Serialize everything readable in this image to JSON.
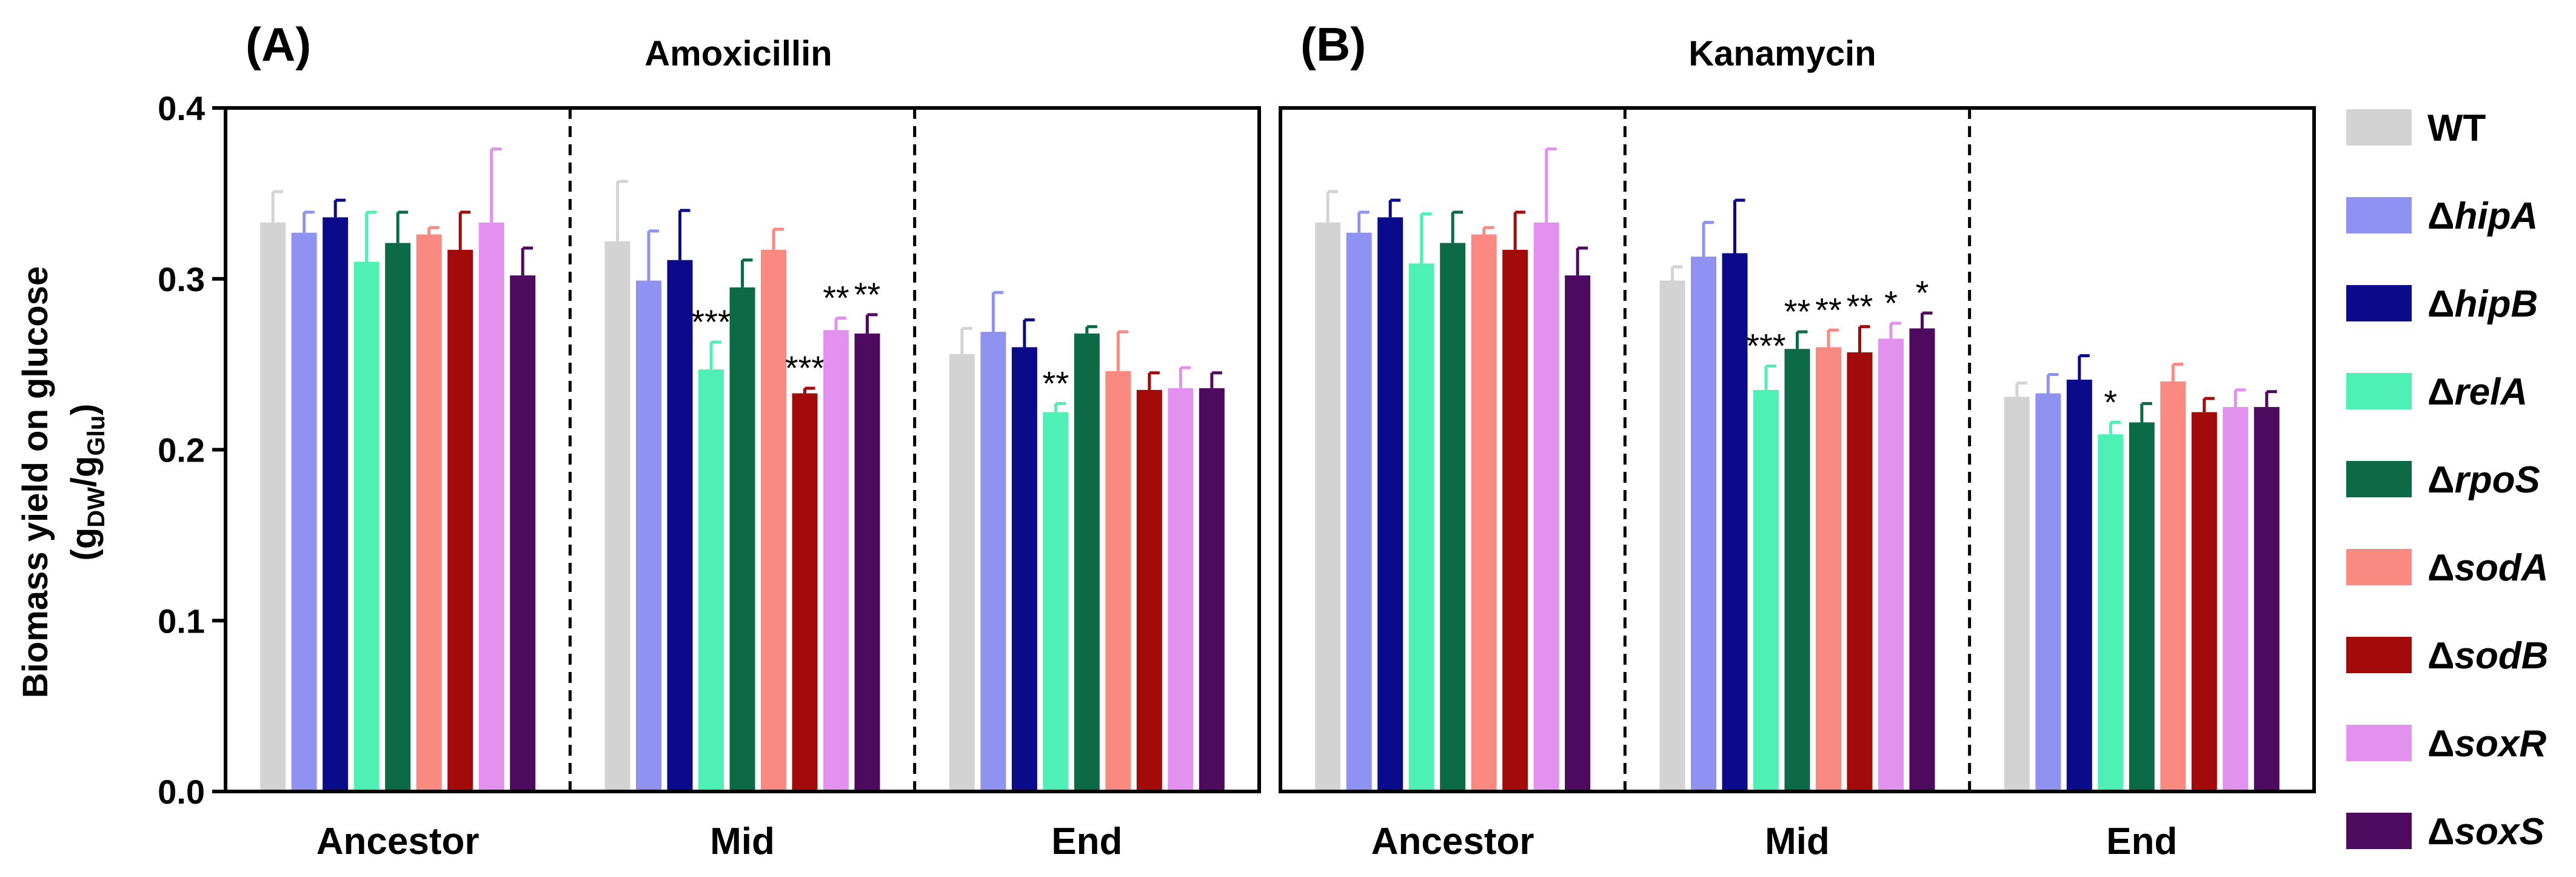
{
  "figure": {
    "ylabel_line1": "Biomass yield on glucose",
    "ylabel_line2_main1": "(g",
    "ylabel_line2_sub1": "DW",
    "ylabel_line2_main2": "/g",
    "ylabel_line2_sub2": "Glu",
    "ylabel_line2_main3": ")",
    "yticks": [
      "0.0",
      "0.1",
      "0.2",
      "0.3",
      "0.4"
    ]
  },
  "legend": [
    {
      "prefix": "",
      "name": "WT",
      "color": "#d3d3d3"
    },
    {
      "prefix": "Δ",
      "name": "hipA",
      "color": "#9092f2"
    },
    {
      "prefix": "Δ",
      "name": "hipB",
      "color": "#0b0a8a"
    },
    {
      "prefix": "Δ",
      "name": "relA",
      "color": "#4ff0b6"
    },
    {
      "prefix": "Δ",
      "name": "rpoS",
      "color": "#0c6b46"
    },
    {
      "prefix": "Δ",
      "name": "sodA",
      "color": "#f98981"
    },
    {
      "prefix": "Δ",
      "name": "sodB",
      "color": "#a30b0b"
    },
    {
      "prefix": "Δ",
      "name": "soxR",
      "color": "#e291ee"
    },
    {
      "prefix": "Δ",
      "name": "soxS",
      "color": "#4d0a5e"
    }
  ],
  "chart_data": [
    {
      "type": "bar",
      "panel": "(A)",
      "title": "Amoxicillin",
      "ylim": [
        0,
        0.4
      ],
      "categories": [
        "Ancestor",
        "Mid",
        "End"
      ],
      "series": [
        {
          "name": "WT",
          "values": [
            0.333,
            0.322,
            0.256
          ],
          "errors": [
            0.018,
            0.035,
            0.015
          ],
          "sig": [
            "",
            "",
            ""
          ]
        },
        {
          "name": "ΔhipA",
          "values": [
            0.327,
            0.299,
            0.269
          ],
          "errors": [
            0.012,
            0.029,
            0.023
          ],
          "sig": [
            "",
            "",
            ""
          ]
        },
        {
          "name": "ΔhipB",
          "values": [
            0.336,
            0.311,
            0.26
          ],
          "errors": [
            0.01,
            0.029,
            0.016
          ],
          "sig": [
            "",
            "",
            ""
          ]
        },
        {
          "name": "ΔrelA",
          "values": [
            0.31,
            0.247,
            0.222
          ],
          "errors": [
            0.029,
            0.016,
            0.005
          ],
          "sig": [
            "",
            "***",
            "**"
          ]
        },
        {
          "name": "ΔrpoS",
          "values": [
            0.321,
            0.295,
            0.268
          ],
          "errors": [
            0.018,
            0.016,
            0.004
          ],
          "sig": [
            "",
            "",
            ""
          ]
        },
        {
          "name": "ΔsodA",
          "values": [
            0.326,
            0.317,
            0.246
          ],
          "errors": [
            0.004,
            0.012,
            0.023
          ],
          "sig": [
            "",
            "",
            ""
          ]
        },
        {
          "name": "ΔsodB",
          "values": [
            0.317,
            0.233,
            0.235
          ],
          "errors": [
            0.022,
            0.003,
            0.01
          ],
          "sig": [
            "",
            "***",
            ""
          ]
        },
        {
          "name": "ΔsoxR",
          "values": [
            0.333,
            0.27,
            0.236
          ],
          "errors": [
            0.043,
            0.007,
            0.012
          ],
          "sig": [
            "",
            "**",
            ""
          ]
        },
        {
          "name": "ΔsoxS",
          "values": [
            0.302,
            0.268,
            0.236
          ],
          "errors": [
            0.016,
            0.011,
            0.009
          ],
          "sig": [
            "",
            "**",
            ""
          ]
        }
      ]
    },
    {
      "type": "bar",
      "panel": "(B)",
      "title": "Kanamycin",
      "ylim": [
        0,
        0.4
      ],
      "categories": [
        "Ancestor",
        "Mid",
        "End"
      ],
      "series": [
        {
          "name": "WT",
          "values": [
            0.333,
            0.299,
            0.231
          ],
          "errors": [
            0.018,
            0.008,
            0.008
          ],
          "sig": [
            "",
            "",
            ""
          ]
        },
        {
          "name": "ΔhipA",
          "values": [
            0.327,
            0.313,
            0.233
          ],
          "errors": [
            0.012,
            0.02,
            0.011
          ],
          "sig": [
            "",
            "",
            ""
          ]
        },
        {
          "name": "ΔhipB",
          "values": [
            0.336,
            0.315,
            0.241
          ],
          "errors": [
            0.01,
            0.031,
            0.014
          ],
          "sig": [
            "",
            "",
            ""
          ]
        },
        {
          "name": "ΔrelA",
          "values": [
            0.309,
            0.235,
            0.209
          ],
          "errors": [
            0.029,
            0.014,
            0.007
          ],
          "sig": [
            "",
            "***",
            "*"
          ]
        },
        {
          "name": "ΔrpoS",
          "values": [
            0.321,
            0.259,
            0.216
          ],
          "errors": [
            0.018,
            0.01,
            0.011
          ],
          "sig": [
            "",
            "**",
            ""
          ]
        },
        {
          "name": "ΔsodA",
          "values": [
            0.326,
            0.26,
            0.24
          ],
          "errors": [
            0.004,
            0.01,
            0.01
          ],
          "sig": [
            "",
            "**",
            ""
          ]
        },
        {
          "name": "ΔsodB",
          "values": [
            0.317,
            0.257,
            0.222
          ],
          "errors": [
            0.022,
            0.015,
            0.008
          ],
          "sig": [
            "",
            "**",
            ""
          ]
        },
        {
          "name": "ΔsoxR",
          "values": [
            0.333,
            0.265,
            0.225
          ],
          "errors": [
            0.043,
            0.009,
            0.01
          ],
          "sig": [
            "",
            "*",
            ""
          ]
        },
        {
          "name": "ΔsoxS",
          "values": [
            0.302,
            0.271,
            0.225
          ],
          "errors": [
            0.016,
            0.009,
            0.009
          ],
          "sig": [
            "",
            "*",
            ""
          ]
        }
      ]
    }
  ]
}
